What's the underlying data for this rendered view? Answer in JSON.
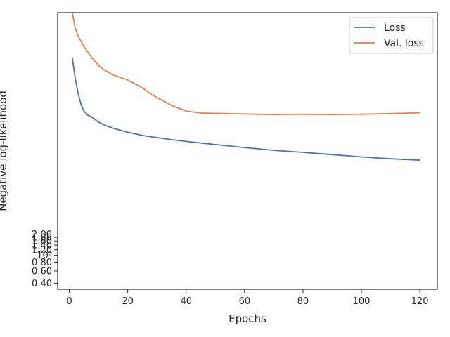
{
  "chart_data": {
    "type": "line",
    "xlabel": "Epochs",
    "ylabel": "Negative log-likelihood",
    "yscale": "log",
    "xlim": [
      -4,
      126
    ],
    "ylim": [
      0.33,
      2800
    ],
    "x_ticks": [
      {
        "value": 0,
        "label": "0"
      },
      {
        "value": 20,
        "label": "20"
      },
      {
        "value": 40,
        "label": "40"
      },
      {
        "value": 60,
        "label": "60"
      },
      {
        "value": 80,
        "label": "80"
      },
      {
        "value": 100,
        "label": "100"
      },
      {
        "value": 120,
        "label": "120"
      }
    ],
    "y_ticks": [
      {
        "value": 0.4,
        "label": "0.40"
      },
      {
        "value": 0.6,
        "label": "0.60"
      },
      {
        "value": 0.8,
        "label": "0.80"
      },
      {
        "value": 1.0,
        "label": "10⁰"
      },
      {
        "value": 1.2,
        "label": "1.20"
      },
      {
        "value": 1.4,
        "label": "1.40"
      },
      {
        "value": 1.6,
        "label": "1.60"
      },
      {
        "value": 1.8,
        "label": "1.80"
      },
      {
        "value": 2.0,
        "label": "2.00"
      }
    ],
    "legend_position": "top-right",
    "series": [
      {
        "name": "Loss",
        "color": "#4c72b0",
        "x": [
          1,
          2,
          3,
          4,
          5,
          6,
          8,
          10,
          12,
          15,
          20,
          25,
          30,
          35,
          40,
          50,
          60,
          70,
          80,
          90,
          100,
          110,
          120
        ],
        "y": [
          640,
          330,
          200,
          140,
          112,
          100,
          90,
          78,
          71,
          64,
          56,
          50.5,
          47,
          44,
          41.5,
          37.5,
          34,
          31,
          29,
          27,
          25,
          23.5,
          22.5
        ]
      },
      {
        "name": "Val. loss",
        "color": "#dd8452",
        "x": [
          1,
          2,
          3,
          5,
          8,
          10,
          12,
          15,
          18,
          20,
          22,
          25,
          28,
          30,
          35,
          40,
          45,
          50,
          60,
          70,
          80,
          90,
          100,
          110,
          120
        ],
        "y": [
          2800,
          1700,
          1300,
          920,
          620,
          500,
          430,
          365,
          330,
          310,
          280,
          240,
          195,
          175,
          135,
          112,
          105,
          104,
          102,
          100,
          101,
          100,
          101,
          103,
          106
        ]
      }
    ]
  }
}
